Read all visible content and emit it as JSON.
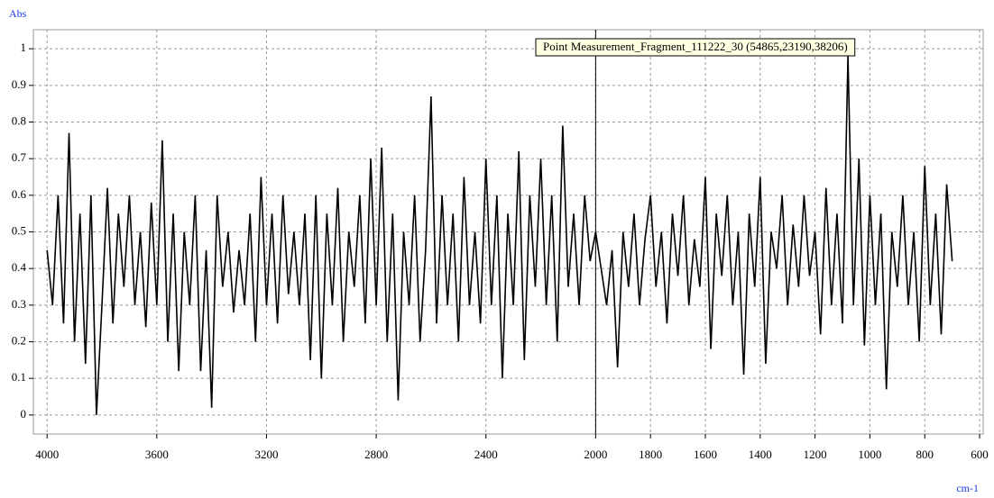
{
  "chart_data": {
    "type": "line",
    "y_label": "Abs",
    "x_label": "cm-1",
    "x": [
      4000,
      3980,
      3960,
      3940,
      3920,
      3900,
      3880,
      3860,
      3840,
      3820,
      3800,
      3780,
      3760,
      3740,
      3720,
      3700,
      3680,
      3660,
      3640,
      3620,
      3600,
      3580,
      3560,
      3540,
      3520,
      3500,
      3480,
      3460,
      3440,
      3420,
      3400,
      3380,
      3360,
      3340,
      3320,
      3300,
      3280,
      3260,
      3240,
      3220,
      3200,
      3180,
      3160,
      3140,
      3120,
      3100,
      3080,
      3060,
      3040,
      3020,
      3000,
      2980,
      2960,
      2940,
      2920,
      2900,
      2880,
      2860,
      2840,
      2820,
      2800,
      2780,
      2760,
      2740,
      2720,
      2700,
      2680,
      2660,
      2640,
      2620,
      2600,
      2580,
      2560,
      2540,
      2520,
      2500,
      2480,
      2460,
      2440,
      2420,
      2400,
      2380,
      2360,
      2340,
      2320,
      2300,
      2280,
      2260,
      2240,
      2220,
      2200,
      2180,
      2160,
      2140,
      2120,
      2100,
      2080,
      2060,
      2040,
      2020,
      2000,
      1980,
      1960,
      1940,
      1920,
      1900,
      1880,
      1860,
      1840,
      1820,
      1800,
      1780,
      1760,
      1740,
      1720,
      1700,
      1680,
      1660,
      1640,
      1620,
      1600,
      1580,
      1560,
      1540,
      1520,
      1500,
      1480,
      1460,
      1440,
      1420,
      1400,
      1380,
      1360,
      1340,
      1320,
      1300,
      1280,
      1260,
      1240,
      1220,
      1200,
      1180,
      1160,
      1140,
      1120,
      1100,
      1080,
      1060,
      1040,
      1020,
      1000,
      980,
      960,
      940,
      920,
      900,
      880,
      860,
      840,
      820,
      800,
      780,
      760,
      740,
      720,
      700
    ],
    "series": [
      {
        "name": "Point Measurement_Fragment_111222_30 (54865,23190,38206)",
        "color": "#000000",
        "values": [
          0.45,
          0.3,
          0.6,
          0.25,
          0.77,
          0.2,
          0.55,
          0.14,
          0.6,
          0.0,
          0.3,
          0.62,
          0.25,
          0.55,
          0.35,
          0.6,
          0.3,
          0.5,
          0.24,
          0.58,
          0.3,
          0.75,
          0.2,
          0.55,
          0.12,
          0.5,
          0.3,
          0.6,
          0.12,
          0.45,
          0.02,
          0.6,
          0.35,
          0.5,
          0.28,
          0.45,
          0.3,
          0.55,
          0.2,
          0.65,
          0.3,
          0.55,
          0.25,
          0.6,
          0.33,
          0.5,
          0.3,
          0.55,
          0.15,
          0.6,
          0.1,
          0.55,
          0.3,
          0.62,
          0.2,
          0.5,
          0.35,
          0.6,
          0.25,
          0.7,
          0.3,
          0.73,
          0.2,
          0.55,
          0.04,
          0.5,
          0.3,
          0.6,
          0.2,
          0.45,
          0.87,
          0.25,
          0.6,
          0.3,
          0.55,
          0.2,
          0.65,
          0.3,
          0.5,
          0.25,
          0.7,
          0.3,
          0.6,
          0.1,
          0.55,
          0.3,
          0.72,
          0.15,
          0.6,
          0.35,
          0.7,
          0.3,
          0.6,
          0.2,
          0.79,
          0.35,
          0.55,
          0.3,
          0.6,
          0.42,
          0.5,
          0.4,
          0.3,
          0.45,
          0.13,
          0.5,
          0.35,
          0.55,
          0.3,
          0.48,
          0.6,
          0.35,
          0.5,
          0.25,
          0.55,
          0.38,
          0.6,
          0.3,
          0.48,
          0.35,
          0.65,
          0.18,
          0.55,
          0.38,
          0.6,
          0.3,
          0.5,
          0.11,
          0.55,
          0.35,
          0.65,
          0.14,
          0.5,
          0.4,
          0.6,
          0.3,
          0.52,
          0.35,
          0.6,
          0.38,
          0.5,
          0.22,
          0.62,
          0.3,
          0.55,
          0.25,
          0.98,
          0.3,
          0.7,
          0.19,
          0.6,
          0.3,
          0.55,
          0.07,
          0.5,
          0.35,
          0.6,
          0.3,
          0.5,
          0.2,
          0.68,
          0.3,
          0.55,
          0.22,
          0.63,
          0.42
        ]
      }
    ],
    "xlim": [
      4050,
      587
    ],
    "xticks": [
      4000,
      3600,
      3200,
      2800,
      2400,
      2000,
      1800,
      1600,
      1400,
      1200,
      1000,
      800,
      600
    ],
    "ylim": [
      -0.052,
      1.052
    ],
    "yticks": [
      0,
      0.1,
      0.2,
      0.3,
      0.4,
      0.5,
      0.6,
      0.7,
      0.8,
      0.9,
      1
    ],
    "grid": true,
    "cursor_x": 2000
  }
}
